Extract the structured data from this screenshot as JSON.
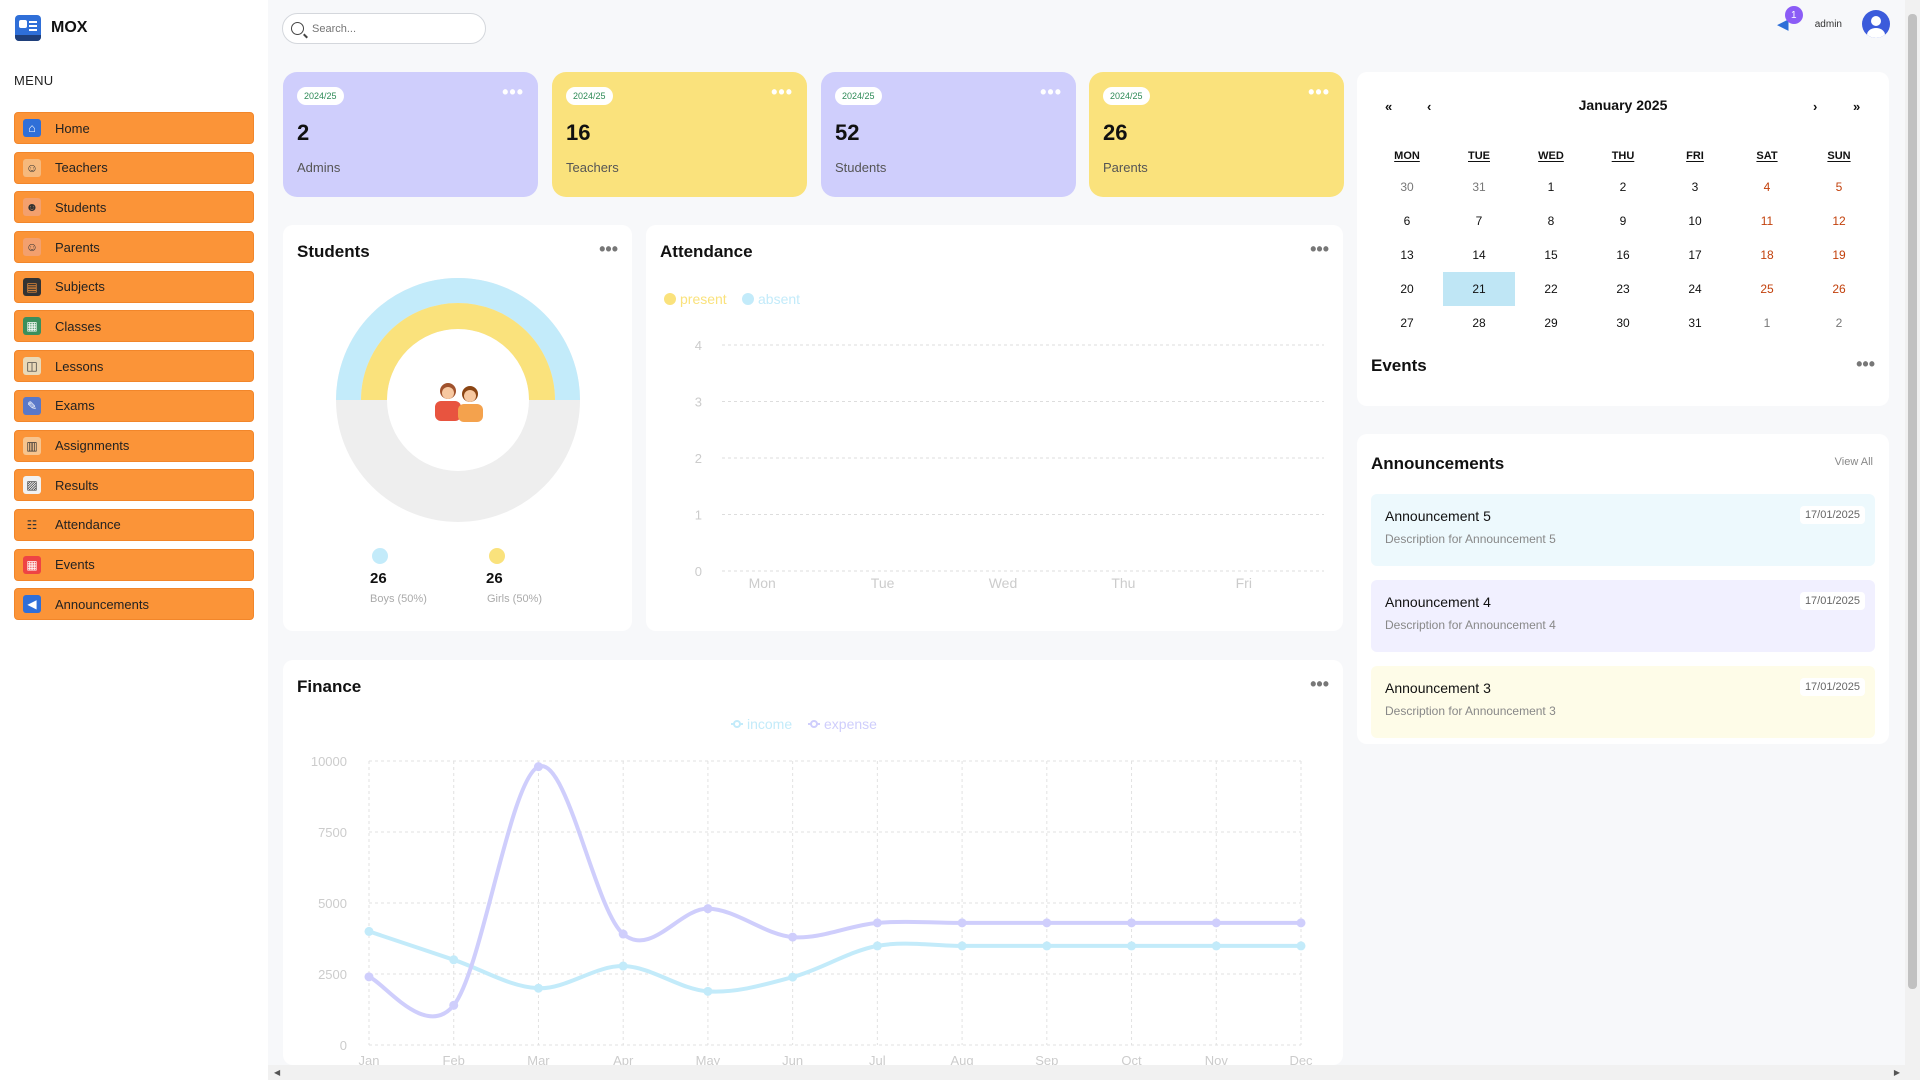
{
  "app": {
    "name": "MOX",
    "menu_title": "MENU"
  },
  "sidebar": {
    "items": [
      {
        "label": "Home",
        "icon": "home-icon",
        "glyph": "⌂",
        "bg": "#2f6fd8",
        "fg": "#fff"
      },
      {
        "label": "Teachers",
        "icon": "teacher-icon",
        "glyph": "☺",
        "bg": "#f6b97c",
        "fg": "#333"
      },
      {
        "label": "Students",
        "icon": "students-icon",
        "glyph": "☻",
        "bg": "#f3a06e",
        "fg": "#333"
      },
      {
        "label": "Parents",
        "icon": "parents-icon",
        "glyph": "☺",
        "bg": "#f3a06e",
        "fg": "#333"
      },
      {
        "label": "Subjects",
        "icon": "subjects-icon",
        "glyph": "▤",
        "bg": "#333",
        "fg": "#fb9438"
      },
      {
        "label": "Classes",
        "icon": "classes-icon",
        "glyph": "▦",
        "bg": "#3a8f5c",
        "fg": "#fff"
      },
      {
        "label": "Lessons",
        "icon": "lessons-icon",
        "glyph": "◫",
        "bg": "#e9d9b8",
        "fg": "#333"
      },
      {
        "label": "Exams",
        "icon": "exams-icon",
        "glyph": "✎",
        "bg": "#5a78c8",
        "fg": "#fff"
      },
      {
        "label": "Assignments",
        "icon": "assignments-icon",
        "glyph": "▥",
        "bg": "#f7c48e",
        "fg": "#333"
      },
      {
        "label": "Results",
        "icon": "results-icon",
        "glyph": "▨",
        "bg": "#f1f1f1",
        "fg": "#333"
      },
      {
        "label": "Attendance",
        "icon": "attendance-icon",
        "glyph": "☷",
        "bg": "#fb9438",
        "fg": "#333"
      },
      {
        "label": "Events",
        "icon": "events-icon",
        "glyph": "▦",
        "bg": "#e44",
        "fg": "#fff"
      },
      {
        "label": "Announcements",
        "icon": "megaphone-icon",
        "glyph": "◀",
        "bg": "#2f6fd8",
        "fg": "#fff"
      }
    ]
  },
  "search": {
    "placeholder": "Search..."
  },
  "topbar": {
    "notification_count": "1",
    "username": "admin"
  },
  "cards": [
    {
      "year": "2024/25",
      "value": "2",
      "label": "Admins",
      "color": "purple"
    },
    {
      "year": "2024/25",
      "value": "16",
      "label": "Teachers",
      "color": "yellow"
    },
    {
      "year": "2024/25",
      "value": "52",
      "label": "Students",
      "color": "purple"
    },
    {
      "year": "2024/25",
      "value": "26",
      "label": "Parents",
      "color": "yellow"
    }
  ],
  "students_panel": {
    "title": "Students",
    "boys_value": "26",
    "boys_label": "Boys (50%)",
    "girls_value": "26",
    "girls_label": "Girls (50%)",
    "boys_color": "#c3ebfa",
    "girls_color": "#fae27c"
  },
  "attendance_panel": {
    "title": "Attendance",
    "chart_data": {
      "type": "bar",
      "categories": [
        "Mon",
        "Tue",
        "Wed",
        "Thu",
        "Fri"
      ],
      "series": [
        {
          "name": "present",
          "values": [
            0,
            0,
            0,
            0,
            0
          ],
          "color": "#fae27c"
        },
        {
          "name": "absent",
          "values": [
            0,
            0,
            0,
            0,
            0
          ],
          "color": "#c3ebfa"
        }
      ],
      "yticks": [
        "0",
        "1",
        "2",
        "3",
        "4"
      ],
      "ylim": [
        0,
        4
      ]
    }
  },
  "finance_panel": {
    "title": "Finance",
    "chart_data": {
      "type": "line",
      "categories": [
        "Jan",
        "Feb",
        "Mar",
        "Apr",
        "May",
        "Jun",
        "Jul",
        "Aug",
        "Sep",
        "Oct",
        "Nov",
        "Dec"
      ],
      "series": [
        {
          "name": "income",
          "values": [
            4000,
            3000,
            2000,
            2780,
            1890,
            2390,
            3490,
            3490,
            3490,
            3490,
            3490,
            3490
          ],
          "color": "#c3ebfa"
        },
        {
          "name": "expense",
          "values": [
            2400,
            1398,
            9800,
            3908,
            4800,
            3800,
            4300,
            4300,
            4300,
            4300,
            4300,
            4300
          ],
          "color": "#cfcefc"
        }
      ],
      "yticks": [
        "0",
        "2500",
        "5000",
        "7500",
        "10000"
      ],
      "ylim": [
        0,
        10000
      ]
    }
  },
  "calendar": {
    "title": "January 2025",
    "nav": {
      "prev_year": "«",
      "prev_month": "‹",
      "next_month": "›",
      "next_year": "»"
    },
    "weekdays": [
      "MON",
      "TUE",
      "WED",
      "THU",
      "FRI",
      "SAT",
      "SUN"
    ],
    "weeks": [
      [
        "30",
        "31",
        "1",
        "2",
        "3",
        "4",
        "5"
      ],
      [
        "6",
        "7",
        "8",
        "9",
        "10",
        "11",
        "12"
      ],
      [
        "13",
        "14",
        "15",
        "16",
        "17",
        "18",
        "19"
      ],
      [
        "20",
        "21",
        "22",
        "23",
        "24",
        "25",
        "26"
      ],
      [
        "27",
        "28",
        "29",
        "30",
        "31",
        "1",
        "2"
      ]
    ],
    "today": "21",
    "events_title": "Events"
  },
  "announcements": {
    "title": "Announcements",
    "view_all": "View All",
    "items": [
      {
        "title": "Announcement 5",
        "description": "Description for Announcement 5",
        "date": "17/01/2025",
        "bg": "#edf9fd"
      },
      {
        "title": "Announcement 4",
        "description": "Description for Announcement 4",
        "date": "17/01/2025",
        "bg": "#f1f0ff"
      },
      {
        "title": "Announcement 3",
        "description": "Description for Announcement 3",
        "date": "17/01/2025",
        "bg": "#fefce8"
      }
    ]
  }
}
